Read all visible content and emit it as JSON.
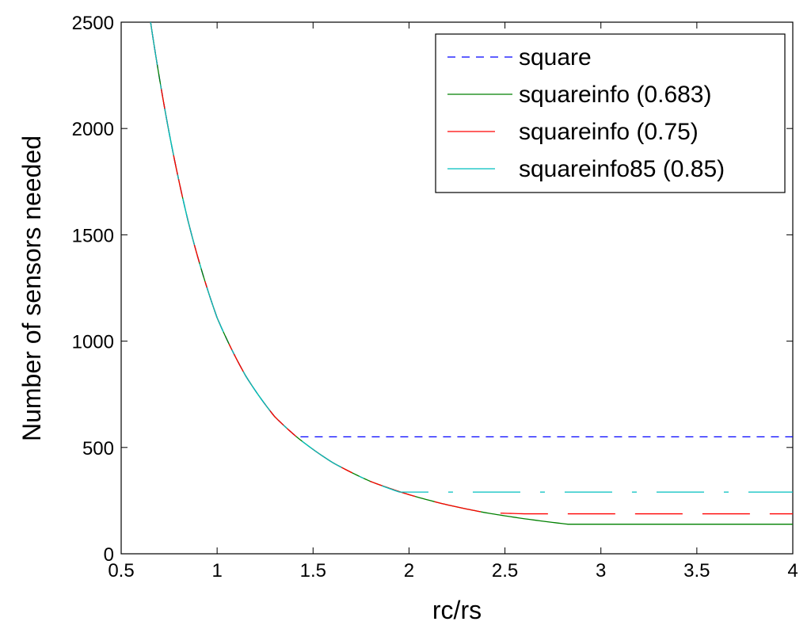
{
  "colors": {
    "square": "#0000ff",
    "squareinfo_0683": "#008000",
    "squareinfo_075": "#ff0000",
    "squareinfo85_085": "#00bfbf",
    "axes": "#000000",
    "background": "#ffffff"
  },
  "chart_data": {
    "type": "line",
    "title": "",
    "xlabel": "rc/rs",
    "ylabel": "Number of sensors needed",
    "xlim": [
      0.5,
      4
    ],
    "ylim": [
      0,
      2500
    ],
    "xticks": [
      0.5,
      1,
      1.5,
      2,
      2.5,
      3,
      3.5,
      4
    ],
    "xtick_labels": [
      "0.5",
      "1",
      "1.5",
      "2",
      "2.5",
      "3",
      "3.5",
      "4"
    ],
    "yticks": [
      0,
      500,
      1000,
      1500,
      2000,
      2500
    ],
    "ytick_labels": [
      "0",
      "500",
      "1000",
      "1500",
      "2000",
      "2500"
    ],
    "grid": false,
    "legend_position": "top-right",
    "series": [
      {
        "name": "square",
        "color": "#0000ff",
        "dash": "dashed",
        "x": [
          0.65,
          0.75,
          0.85,
          1.0,
          1.15,
          1.3,
          1.414,
          2.0,
          2.5,
          3.0,
          3.5,
          4.0
        ],
        "y": [
          2520,
          1980,
          1560,
          1110,
          835,
          645,
          550,
          550,
          550,
          550,
          550,
          550
        ]
      },
      {
        "name": "squareinfo (0.683)",
        "color": "#008000",
        "dash": "solid",
        "x": [
          0.65,
          0.75,
          0.85,
          1.0,
          1.15,
          1.3,
          1.414,
          1.6,
          1.8,
          2.0,
          2.2,
          2.4,
          2.6,
          2.828,
          3.0,
          3.5,
          4.0
        ],
        "y": [
          2520,
          1980,
          1560,
          1110,
          835,
          645,
          550,
          430,
          340,
          278,
          230,
          193,
          165,
          139,
          139,
          139,
          139
        ]
      },
      {
        "name": "squareinfo (0.75)",
        "color": "#ff0000",
        "dash": "dash-long",
        "x": [
          0.65,
          0.75,
          0.85,
          1.0,
          1.15,
          1.3,
          1.414,
          1.6,
          1.8,
          2.0,
          2.2,
          2.4,
          2.6,
          2.7,
          3.0,
          3.5,
          4.0
        ],
        "y": [
          2520,
          1980,
          1560,
          1110,
          835,
          645,
          550,
          430,
          340,
          278,
          230,
          193,
          188,
          188,
          188,
          188,
          188
        ]
      },
      {
        "name": "squareinfo85 (0.85)",
        "color": "#00bfbf",
        "dash": "dash-dot",
        "x": [
          0.65,
          0.75,
          0.85,
          1.0,
          1.15,
          1.3,
          1.414,
          1.6,
          1.8,
          1.95,
          2.0,
          2.5,
          3.0,
          3.5,
          4.0
        ],
        "y": [
          2520,
          1980,
          1560,
          1110,
          835,
          645,
          550,
          430,
          340,
          290,
          290,
          290,
          290,
          290,
          290
        ]
      }
    ]
  }
}
